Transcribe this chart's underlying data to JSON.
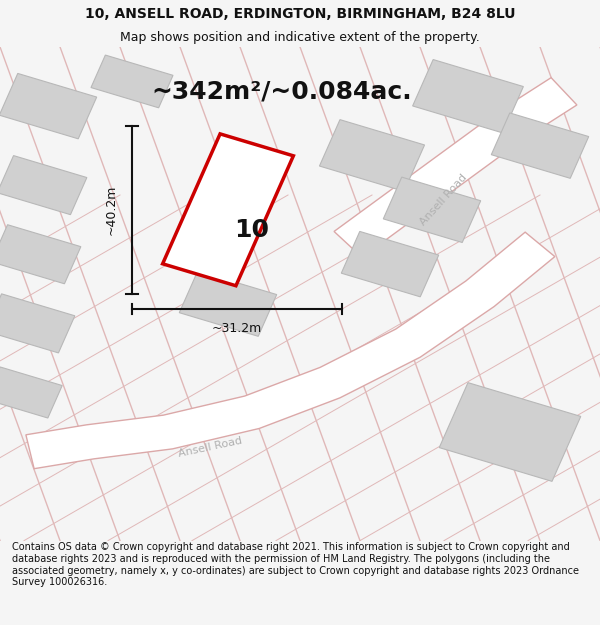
{
  "title_line1": "10, ANSELL ROAD, ERDINGTON, BIRMINGHAM, B24 8LU",
  "title_line2": "Map shows position and indicative extent of the property.",
  "area_text": "~342m²/~0.084ac.",
  "dim_width": "~31.2m",
  "dim_height": "~40.2m",
  "plot_number": "10",
  "footer_text": "Contains OS data © Crown copyright and database right 2021. This information is subject to Crown copyright and database rights 2023 and is reproduced with the permission of HM Land Registry. The polygons (including the associated geometry, namely x, y co-ordinates) are subject to Crown copyright and database rights 2023 Ordnance Survey 100026316.",
  "bg_color": "#f5f5f5",
  "map_bg": "#f8f8f8",
  "road_line_color": "#e0b8b8",
  "road_fill": "#ffffff",
  "road_edge_color": "#dba8a8",
  "building_fill": "#d0d0d0",
  "building_stroke": "#b8b8b8",
  "plot_stroke": "#cc0000",
  "plot_fill": "#ffffff",
  "dim_color": "#111111",
  "text_color": "#111111",
  "road_label_color": "#b0b0b0",
  "title_fontsize": 10,
  "subtitle_fontsize": 9,
  "area_fontsize": 18,
  "dim_fontsize": 9,
  "plot_num_fontsize": 18,
  "footer_fontsize": 7
}
